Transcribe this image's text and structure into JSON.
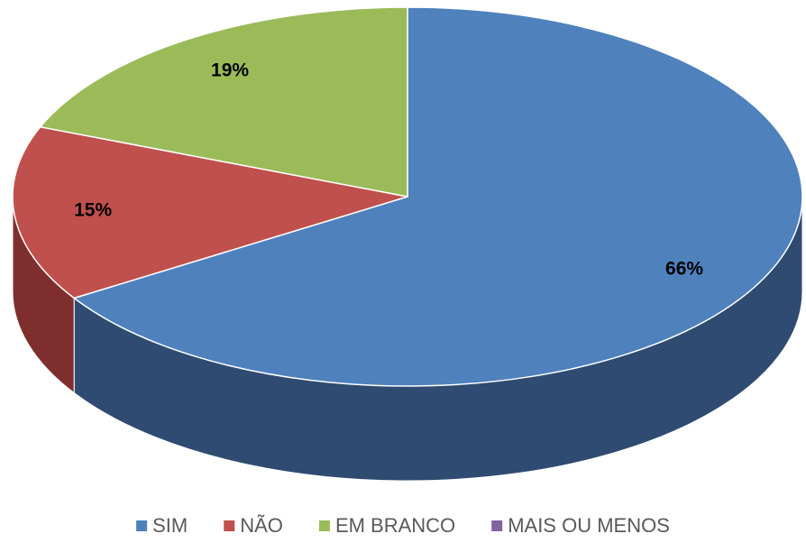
{
  "chart_data": {
    "type": "pie",
    "categories": [
      "SIM",
      "NÃO",
      "EM BRANCO",
      "MAIS OU MENOS"
    ],
    "values": [
      66,
      15,
      19,
      0
    ],
    "value_labels": [
      "66%",
      "15%",
      "19%",
      null
    ],
    "colors": [
      "#4f81bd",
      "#c0504d",
      "#9bbb59",
      "#8064a2"
    ],
    "side_colors": [
      "#2f4b72",
      "#7e2f2d",
      "#6a8238",
      "#54406e"
    ],
    "legend": "bottom"
  }
}
